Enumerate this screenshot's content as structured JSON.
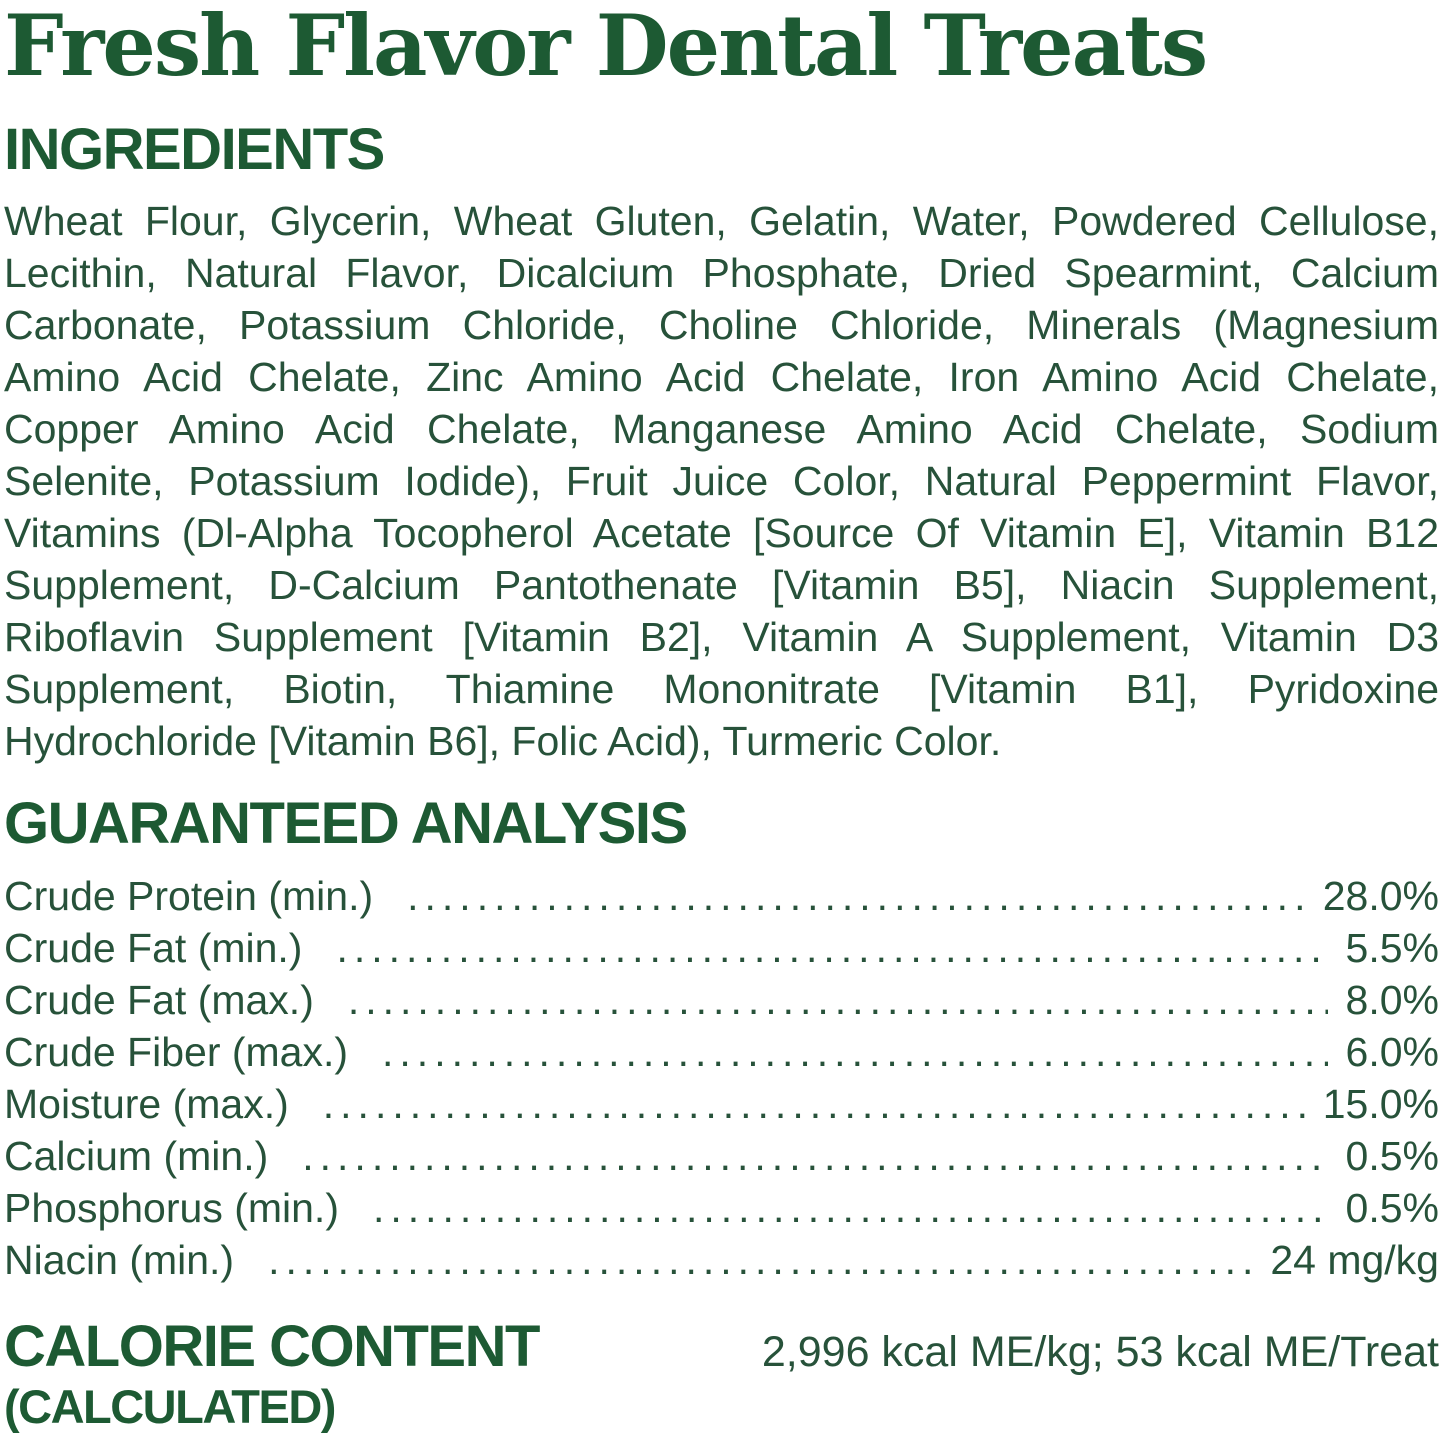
{
  "title": "Fresh Flavor Dental Treats",
  "colors": {
    "heading_green": "#1d5a33",
    "body_green": "#27523a",
    "background": "#ffffff"
  },
  "ingredients": {
    "heading": "INGREDIENTS",
    "text": "Wheat Flour, Glycerin, Wheat Gluten, Gelatin, Water, Powdered Cellulose, Lecithin, Natural Flavor, Dicalcium Phosphate, Dried Spearmint, Calcium Carbonate, Potassium Chloride, Choline Chloride, Minerals (Magnesium Amino Acid Chelate, Zinc Amino Acid Chelate, Iron Amino Acid Chelate, Copper Amino Acid Chelate, Manganese Amino Acid Chelate, Sodium Selenite, Potassium Iodide), Fruit Juice Color, Natural Peppermint Flavor, Vitamins (Dl-Alpha Tocopherol Acetate [Source Of Vitamin E], Vitamin B12 Supplement, D-Calcium Pantothenate [Vitamin B5], Niacin Supplement, Riboflavin Supplement [Vitamin B2], Vitamin A Supplement, Vitamin D3 Supplement, Biotin, Thiamine Mononitrate [Vitamin B1], Pyridoxine Hydrochloride [Vitamin B6], Folic Acid), Turmeric Color."
  },
  "guaranteed_analysis": {
    "heading": "GUARANTEED ANALYSIS",
    "rows": [
      {
        "label": "Crude Protein (min.)",
        "value": "28.0%"
      },
      {
        "label": "Crude Fat (min.)",
        "value": "5.5%"
      },
      {
        "label": "Crude Fat (max.)",
        "value": "8.0%"
      },
      {
        "label": "Crude Fiber (max.)",
        "value": "6.0%"
      },
      {
        "label": "Moisture (max.)",
        "value": "15.0%"
      },
      {
        "label": "Calcium (min.)",
        "value": "0.5%"
      },
      {
        "label": "Phosphorus (min.)",
        "value": "0.5%"
      },
      {
        "label": "Niacin (min.)",
        "value": "24 mg/kg"
      }
    ]
  },
  "calorie_content": {
    "heading": "CALORIE CONTENT",
    "subheading": "(CALCULATED)",
    "value": "2,996 kcal ME/kg; 53 kcal ME/Treat"
  }
}
